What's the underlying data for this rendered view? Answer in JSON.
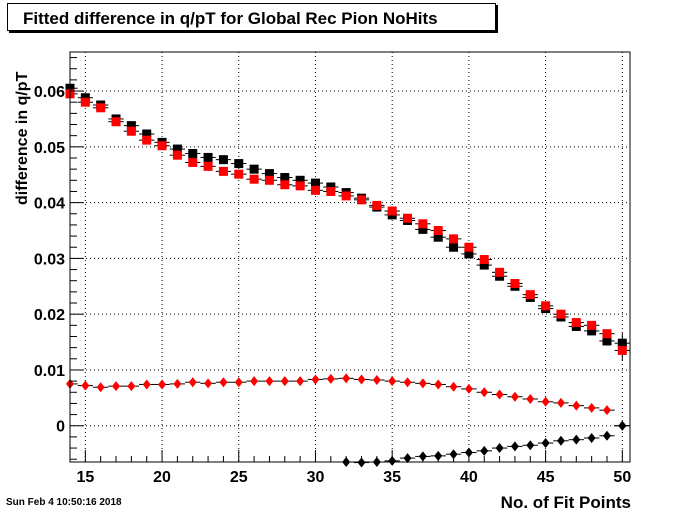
{
  "timestamp": "Sun Feb  4 10:50:16 2018",
  "chart_data": {
    "type": "scatter",
    "title": "Fitted difference in q/pT for Global Rec Pion NoHits",
    "xlabel": "No. of Fit Points",
    "ylabel": "difference in q/pT",
    "xlim": [
      14,
      50.5
    ],
    "ylim": [
      -0.0065,
      0.067
    ],
    "x_ticks": [
      15,
      20,
      25,
      30,
      35,
      40,
      45,
      50
    ],
    "y_ticks": [
      0,
      0.01,
      0.02,
      0.03,
      0.04,
      0.05,
      0.06
    ],
    "y_tick_labels": [
      "0",
      "0.01",
      "0.02",
      "0.03",
      "0.04",
      "0.05",
      "0.06"
    ],
    "grid": true,
    "series": [
      {
        "color": "#000000",
        "marker": "square",
        "x": [
          14,
          15,
          16,
          17,
          18,
          19,
          20,
          21,
          22,
          23,
          24,
          25,
          26,
          27,
          28,
          29,
          30,
          31,
          32,
          33,
          34,
          35,
          36,
          37,
          38,
          39,
          40,
          41,
          42,
          43,
          44,
          45,
          46,
          47,
          48,
          49,
          50
        ],
        "y": [
          0.0605,
          0.0588,
          0.0575,
          0.055,
          0.0538,
          0.0523,
          0.0508,
          0.0496,
          0.0488,
          0.0481,
          0.0477,
          0.047,
          0.046,
          0.0452,
          0.0445,
          0.044,
          0.0435,
          0.0428,
          0.0418,
          0.0408,
          0.0392,
          0.0378,
          0.0368,
          0.0352,
          0.0338,
          0.032,
          0.0308,
          0.0288,
          0.0268,
          0.025,
          0.023,
          0.021,
          0.0195,
          0.0178,
          0.017,
          0.0152,
          0.0148
        ],
        "y_err": [
          0.0006,
          0.0005,
          0.0005,
          0.0005,
          0.0005,
          0.0005,
          0.0005,
          0.0005,
          0.0005,
          0.0005,
          0.0005,
          0.0005,
          0.0005,
          0.0005,
          0.0005,
          0.0005,
          0.0005,
          0.0005,
          0.0005,
          0.0005,
          0.0005,
          0.0005,
          0.0005,
          0.0005,
          0.0005,
          0.0005,
          0.0005,
          0.0005,
          0.0005,
          0.0005,
          0.0005,
          0.0005,
          0.0005,
          0.0006,
          0.0007,
          0.0008,
          0.0018
        ]
      },
      {
        "color": "#ff0000",
        "marker": "square",
        "x": [
          14,
          15,
          16,
          17,
          18,
          19,
          20,
          21,
          22,
          23,
          24,
          25,
          26,
          27,
          28,
          29,
          30,
          31,
          32,
          33,
          34,
          35,
          36,
          37,
          38,
          39,
          40,
          41,
          42,
          43,
          44,
          45,
          46,
          47,
          48,
          49,
          50
        ],
        "y": [
          0.0595,
          0.058,
          0.057,
          0.0545,
          0.0528,
          0.0512,
          0.0502,
          0.0485,
          0.0472,
          0.0465,
          0.0456,
          0.0451,
          0.0442,
          0.044,
          0.0432,
          0.043,
          0.0422,
          0.042,
          0.0412,
          0.0405,
          0.0395,
          0.0385,
          0.0372,
          0.0362,
          0.035,
          0.0335,
          0.032,
          0.0298,
          0.0275,
          0.0255,
          0.0235,
          0.0215,
          0.02,
          0.0185,
          0.018,
          0.0165,
          0.0135
        ],
        "y_err": [
          0.0006,
          0.0005,
          0.0005,
          0.0005,
          0.0005,
          0.0005,
          0.0005,
          0.0005,
          0.0005,
          0.0005,
          0.0005,
          0.0005,
          0.0005,
          0.0005,
          0.0005,
          0.0005,
          0.0005,
          0.0005,
          0.0005,
          0.0005,
          0.0005,
          0.0005,
          0.0005,
          0.0005,
          0.0005,
          0.0005,
          0.0005,
          0.0005,
          0.0005,
          0.0005,
          0.0005,
          0.0005,
          0.0005,
          0.0006,
          0.0007,
          0.0008,
          0.0018
        ]
      },
      {
        "color": "#ff0000",
        "marker": "diamond",
        "x": [
          14,
          15,
          16,
          17,
          18,
          19,
          20,
          21,
          22,
          23,
          24,
          25,
          26,
          27,
          28,
          29,
          30,
          31,
          32,
          33,
          34,
          35,
          36,
          37,
          38,
          39,
          40,
          41,
          42,
          43,
          44,
          45,
          46,
          47,
          48,
          49,
          50
        ],
        "y": [
          0.0075,
          0.0072,
          0.0069,
          0.0071,
          0.0071,
          0.0074,
          0.0074,
          0.0075,
          0.0078,
          0.0076,
          0.0078,
          0.0078,
          0.008,
          0.008,
          0.008,
          0.008,
          0.0083,
          0.0084,
          0.0085,
          0.0083,
          0.0082,
          0.008,
          0.0078,
          0.0076,
          0.0074,
          0.007,
          0.0066,
          0.006,
          0.0056,
          0.0052,
          0.0048,
          0.0043,
          0.0041,
          0.0036,
          0.0032,
          0.0028,
          0.0
        ]
      },
      {
        "color": "#000000",
        "marker": "diamond",
        "x": [
          32,
          33,
          34,
          35,
          36,
          37,
          38,
          39,
          40,
          41,
          42,
          43,
          44,
          45,
          46,
          47,
          48,
          49,
          50
        ],
        "y": [
          -0.0065,
          -0.0066,
          -0.0065,
          -0.0063,
          -0.0058,
          -0.0055,
          -0.0054,
          -0.0051,
          -0.0048,
          -0.0045,
          -0.004,
          -0.0037,
          -0.0035,
          -0.0031,
          -0.0027,
          -0.0025,
          -0.0022,
          -0.0018,
          0.0
        ]
      }
    ]
  }
}
